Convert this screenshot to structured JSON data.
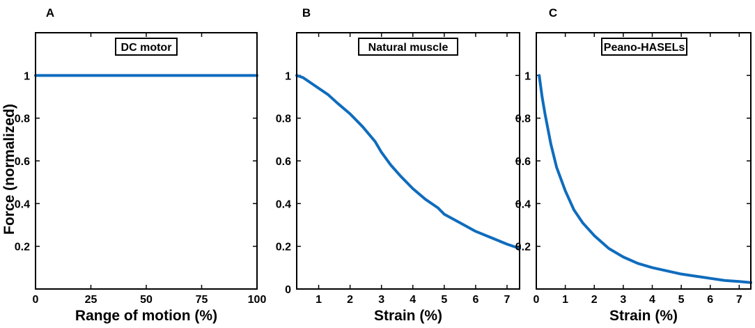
{
  "chart_data": [
    {
      "panel": "A",
      "type": "line",
      "title": "DC motor",
      "xlabel": "Range of motion (%)",
      "ylabel": "Force (normalized)",
      "xlim": [
        0,
        100
      ],
      "ylim": [
        0,
        1.2
      ],
      "xticks": [
        0,
        25,
        50,
        75,
        100
      ],
      "yticks": [
        0.2,
        0.4,
        0.6,
        0.8,
        1
      ],
      "line_color": "#0f6cbd",
      "series": [
        {
          "name": "DC motor",
          "x": [
            0,
            25,
            50,
            75,
            100
          ],
          "y": [
            1,
            1,
            1,
            1,
            1
          ]
        }
      ]
    },
    {
      "panel": "B",
      "type": "line",
      "title": "Natural muscle",
      "xlabel": "Strain (%)",
      "ylabel": "",
      "xlim": [
        0.3,
        7.4
      ],
      "ylim": [
        0,
        1.2
      ],
      "xticks": [
        1,
        2,
        3,
        4,
        5,
        6,
        7
      ],
      "yticks": [
        0,
        0.2,
        0.4,
        0.6,
        0.8,
        1
      ],
      "line_color": "#0f6cbd",
      "series": [
        {
          "name": "Natural muscle",
          "x": [
            0.3,
            0.5,
            0.7,
            1.0,
            1.3,
            1.6,
            2.0,
            2.4,
            2.8,
            3.0,
            3.3,
            3.6,
            4.0,
            4.4,
            4.8,
            5.0,
            5.5,
            6.0,
            6.5,
            7.0,
            7.4
          ],
          "y": [
            1.0,
            0.99,
            0.97,
            0.94,
            0.91,
            0.87,
            0.82,
            0.76,
            0.69,
            0.64,
            0.58,
            0.53,
            0.47,
            0.42,
            0.38,
            0.35,
            0.31,
            0.27,
            0.24,
            0.21,
            0.19
          ]
        }
      ]
    },
    {
      "panel": "C",
      "type": "line",
      "title": "Peano-HASELs",
      "xlabel": "Strain (%)",
      "ylabel": "",
      "xlim": [
        0,
        7.4
      ],
      "ylim": [
        0,
        1.2
      ],
      "xticks": [
        0,
        1,
        2,
        3,
        4,
        5,
        6,
        7
      ],
      "yticks": [
        0.2,
        0.4,
        0.6,
        0.8,
        1
      ],
      "line_color": "#0f6cbd",
      "series": [
        {
          "name": "Peano-HASELs",
          "x": [
            0.1,
            0.2,
            0.3,
            0.5,
            0.7,
            1.0,
            1.3,
            1.6,
            2.0,
            2.5,
            3.0,
            3.5,
            4.0,
            4.5,
            5.0,
            5.5,
            6.0,
            6.5,
            7.0,
            7.4
          ],
          "y": [
            1.0,
            0.9,
            0.82,
            0.68,
            0.57,
            0.46,
            0.37,
            0.31,
            0.25,
            0.19,
            0.15,
            0.12,
            0.1,
            0.085,
            0.07,
            0.06,
            0.05,
            0.04,
            0.035,
            0.03
          ]
        }
      ]
    }
  ]
}
